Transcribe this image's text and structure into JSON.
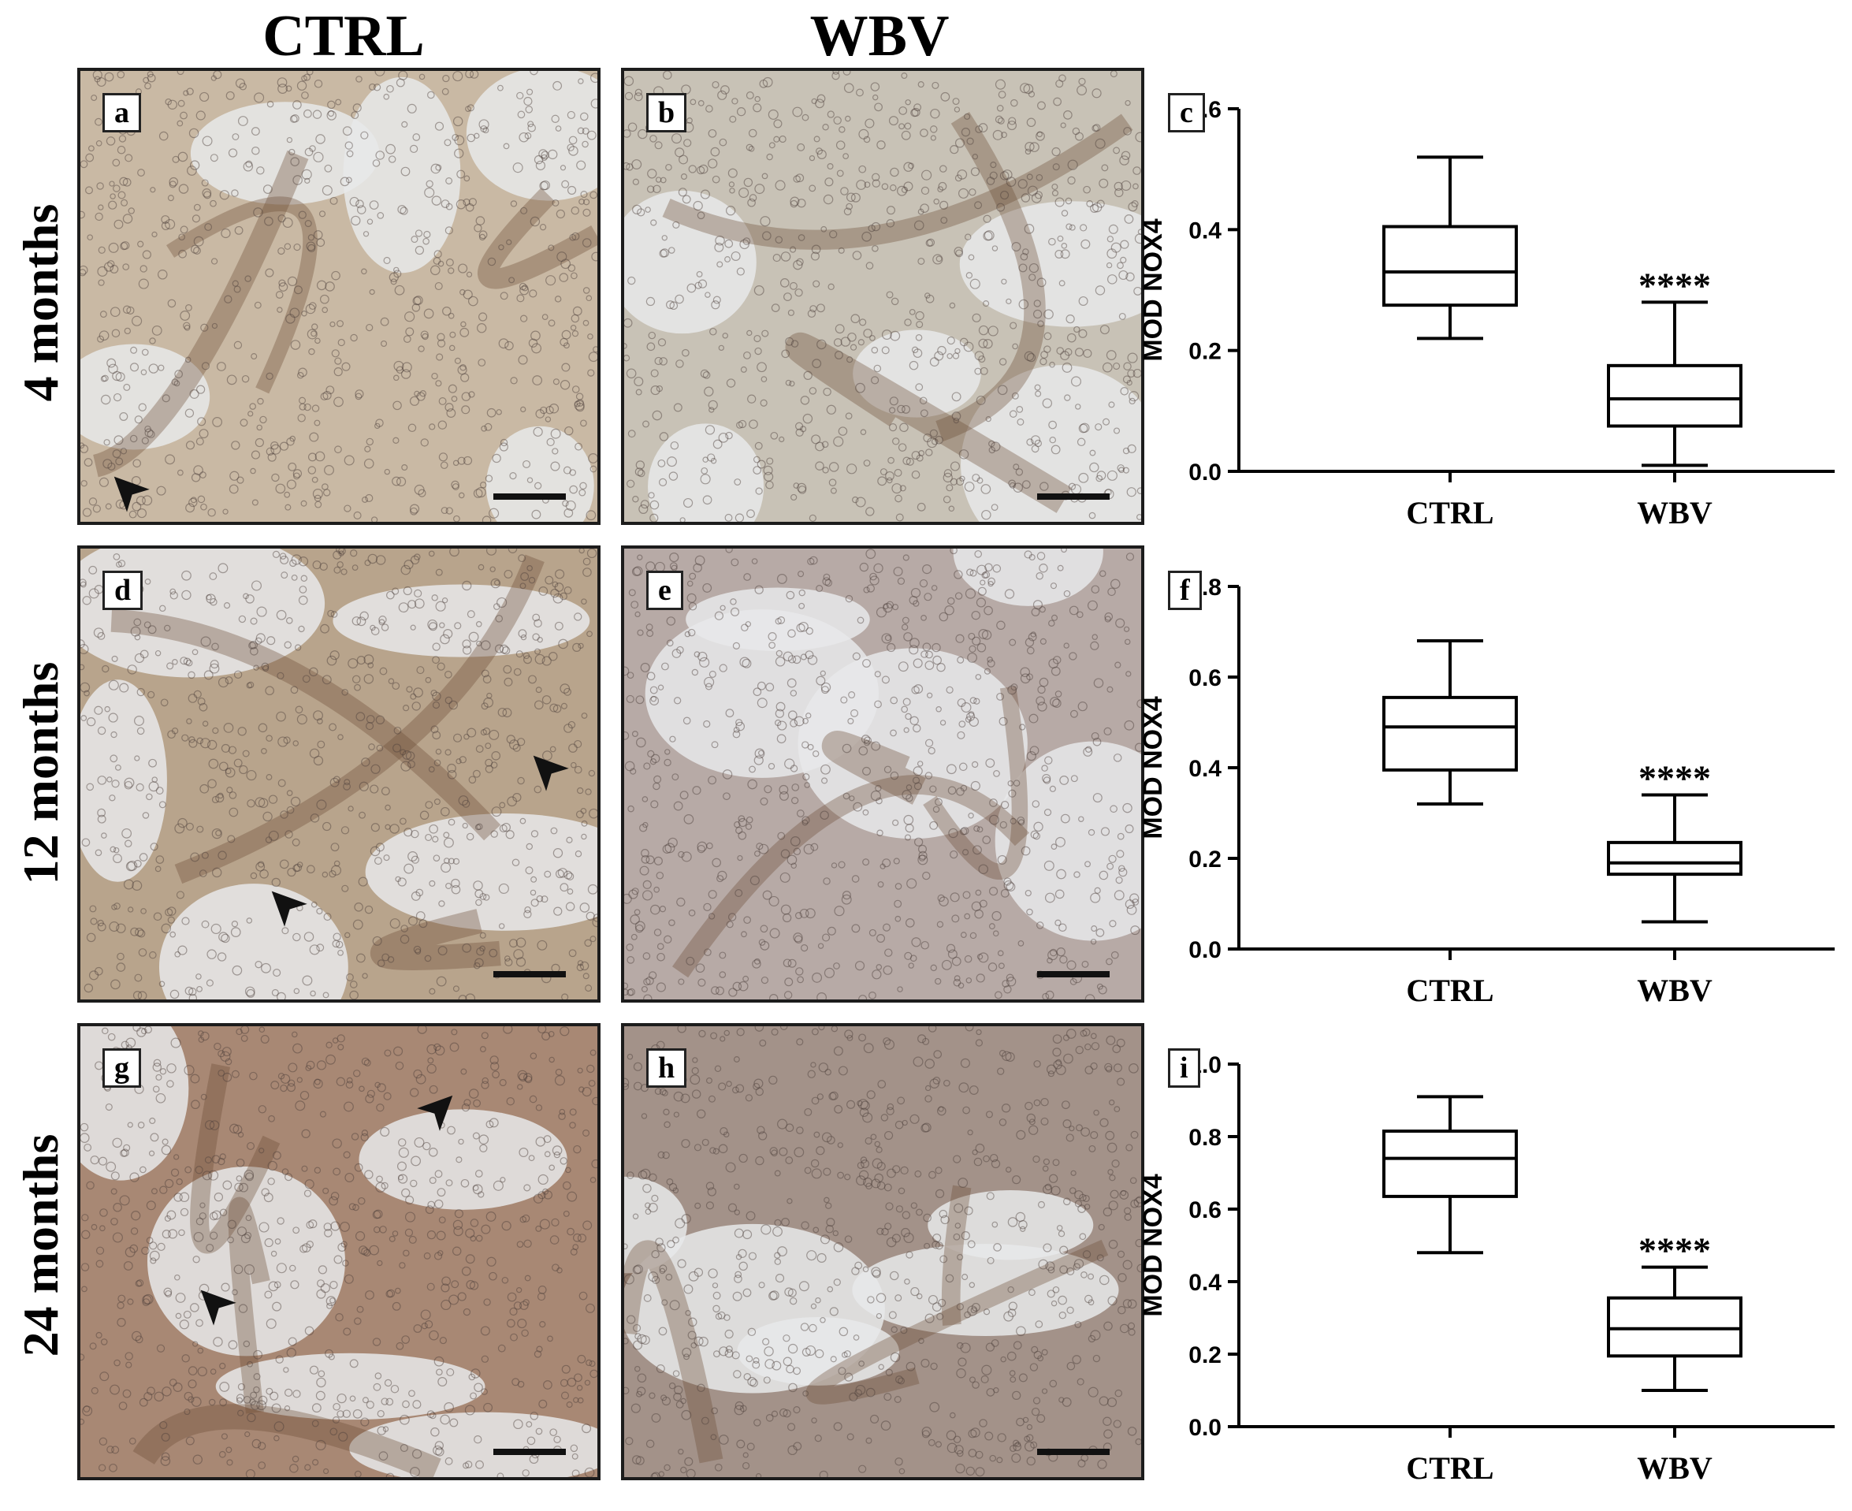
{
  "columns": {
    "ctrl": "CTRL",
    "wbv": "WBV"
  },
  "rows": [
    "4 months",
    "12 months",
    "24 months"
  ],
  "micrographs": [
    {
      "letter": "a",
      "group": "CTRL",
      "row": 0,
      "tint": "#c9b9a4",
      "arrows": 1
    },
    {
      "letter": "b",
      "group": "WBV",
      "row": 0,
      "tint": "#c8c2b6",
      "arrows": 0
    },
    {
      "letter": "d",
      "group": "CTRL",
      "row": 1,
      "tint": "#b8a48c",
      "arrows": 2
    },
    {
      "letter": "e",
      "group": "WBV",
      "row": 1,
      "tint": "#b7aaa6",
      "arrows": 0
    },
    {
      "letter": "g",
      "group": "CTRL",
      "row": 2,
      "tint": "#a88874",
      "arrows": 2
    },
    {
      "letter": "h",
      "group": "WBV",
      "row": 2,
      "tint": "#a39289",
      "arrows": 0
    }
  ],
  "colors": {
    "ink": "#000000",
    "tissue_light": "#e7e9ea",
    "stain_brown": "#6a4a34"
  },
  "chart_data": [
    {
      "panel": "c",
      "type": "box",
      "ylabel": "MOD NOX4",
      "categories": [
        "CTRL",
        "WBV"
      ],
      "ylim": [
        0,
        0.6
      ],
      "yticks": [
        "0.0",
        "0.2",
        "0.4",
        "0.6"
      ],
      "boxes": [
        {
          "min": 0.22,
          "q1": 0.275,
          "median": 0.33,
          "q3": 0.405,
          "max": 0.52,
          "annotation": ""
        },
        {
          "min": 0.01,
          "q1": 0.075,
          "median": 0.12,
          "q3": 0.175,
          "max": 0.28,
          "annotation": "****"
        }
      ]
    },
    {
      "panel": "f",
      "type": "box",
      "ylabel": "MOD NOX4",
      "categories": [
        "CTRL",
        "WBV"
      ],
      "ylim": [
        0,
        0.8
      ],
      "yticks": [
        "0.0",
        "0.2",
        "0.4",
        "0.6",
        "0.8"
      ],
      "boxes": [
        {
          "min": 0.32,
          "q1": 0.395,
          "median": 0.49,
          "q3": 0.555,
          "max": 0.68,
          "annotation": ""
        },
        {
          "min": 0.06,
          "q1": 0.165,
          "median": 0.19,
          "q3": 0.235,
          "max": 0.34,
          "annotation": "****"
        }
      ]
    },
    {
      "panel": "i",
      "type": "box",
      "ylabel": "MOD NOX4",
      "categories": [
        "CTRL",
        "WBV"
      ],
      "ylim": [
        0,
        1.0
      ],
      "yticks": [
        "0.0",
        "0.2",
        "0.4",
        "0.6",
        "0.8",
        "1.0"
      ],
      "boxes": [
        {
          "min": 0.48,
          "q1": 0.635,
          "median": 0.74,
          "q3": 0.815,
          "max": 0.91,
          "annotation": ""
        },
        {
          "min": 0.1,
          "q1": 0.195,
          "median": 0.27,
          "q3": 0.355,
          "max": 0.44,
          "annotation": "****"
        }
      ]
    }
  ]
}
